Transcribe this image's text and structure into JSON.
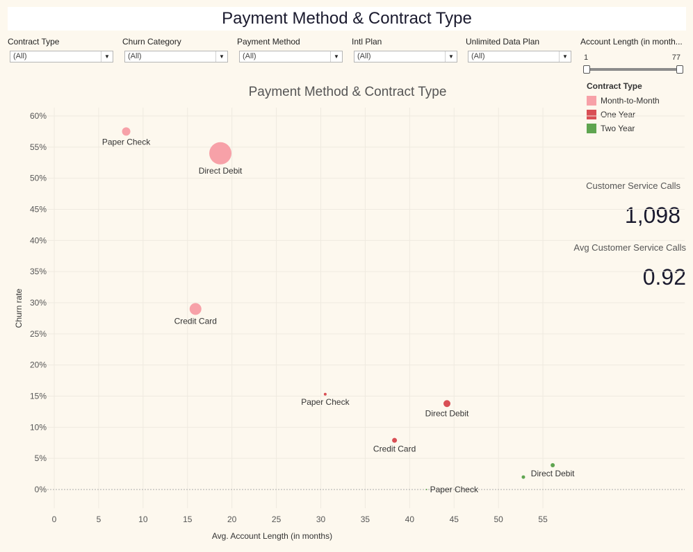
{
  "dashboard_title": "Payment Method & Contract Type",
  "filters": [
    {
      "label": "Contract Type",
      "value": "(All)"
    },
    {
      "label": "Churn Category",
      "value": "(All)"
    },
    {
      "label": "Payment Method",
      "value": "(All)"
    },
    {
      "label": "Intl Plan",
      "value": "(All)"
    },
    {
      "label": "Unlimited Data Plan",
      "value": "(All)"
    }
  ],
  "account_length_filter": {
    "label": "Account Length (in month...",
    "min": "1",
    "max": "77"
  },
  "legend": {
    "title": "Contract Type",
    "items": [
      {
        "label": "Month-to-Month",
        "color": "#f7a1a8"
      },
      {
        "label": "One Year",
        "color": "#d94f55"
      },
      {
        "label": "Two Year",
        "color": "#5fa550"
      }
    ]
  },
  "kpis": {
    "total_label": "Customer Service Calls",
    "total_value": "1,098",
    "avg_label": "Avg Customer Service Calls",
    "avg_value": "0.92"
  },
  "chart_data": {
    "type": "scatter",
    "title": "Payment Method & Contract Type",
    "xlabel": "Avg. Account Length (in months)",
    "ylabel": "Churn rate",
    "xlim": [
      0,
      60
    ],
    "ylim": [
      0,
      0.6
    ],
    "x_ticks": [
      0,
      5,
      10,
      15,
      20,
      25,
      30,
      35,
      40,
      45,
      50,
      55
    ],
    "y_ticks": [
      "0%",
      "5%",
      "10%",
      "15%",
      "20%",
      "25%",
      "30%",
      "35%",
      "40%",
      "45%",
      "50%",
      "55%",
      "60%"
    ],
    "grid": true,
    "legend_position": "top-right",
    "points": [
      {
        "label": "Paper Check",
        "series": "Month-to-Month",
        "x": 8.1,
        "y": 0.575,
        "size": 6
      },
      {
        "label": "Direct Debit",
        "series": "Month-to-Month",
        "x": 18.7,
        "y": 0.54,
        "size": 16
      },
      {
        "label": "Credit Card",
        "series": "Month-to-Month",
        "x": 15.9,
        "y": 0.29,
        "size": 8.5
      },
      {
        "label": "Paper Check",
        "series": "One Year",
        "x": 30.5,
        "y": 0.153,
        "size": 2
      },
      {
        "label": "Direct Debit",
        "series": "One Year",
        "x": 44.2,
        "y": 0.138,
        "size": 5
      },
      {
        "label": "Credit Card",
        "series": "One Year",
        "x": 38.3,
        "y": 0.079,
        "size": 3.5
      },
      {
        "label": "Direct Debit",
        "series": "Two Year",
        "x": 56.1,
        "y": 0.039,
        "size": 3
      },
      {
        "label": "",
        "series": "Two Year",
        "x": 52.8,
        "y": 0.02,
        "size": 2.5
      },
      {
        "label": "Paper Check",
        "series": "Two Year",
        "x": 41.9,
        "y": 0.0,
        "size": 1
      }
    ]
  }
}
